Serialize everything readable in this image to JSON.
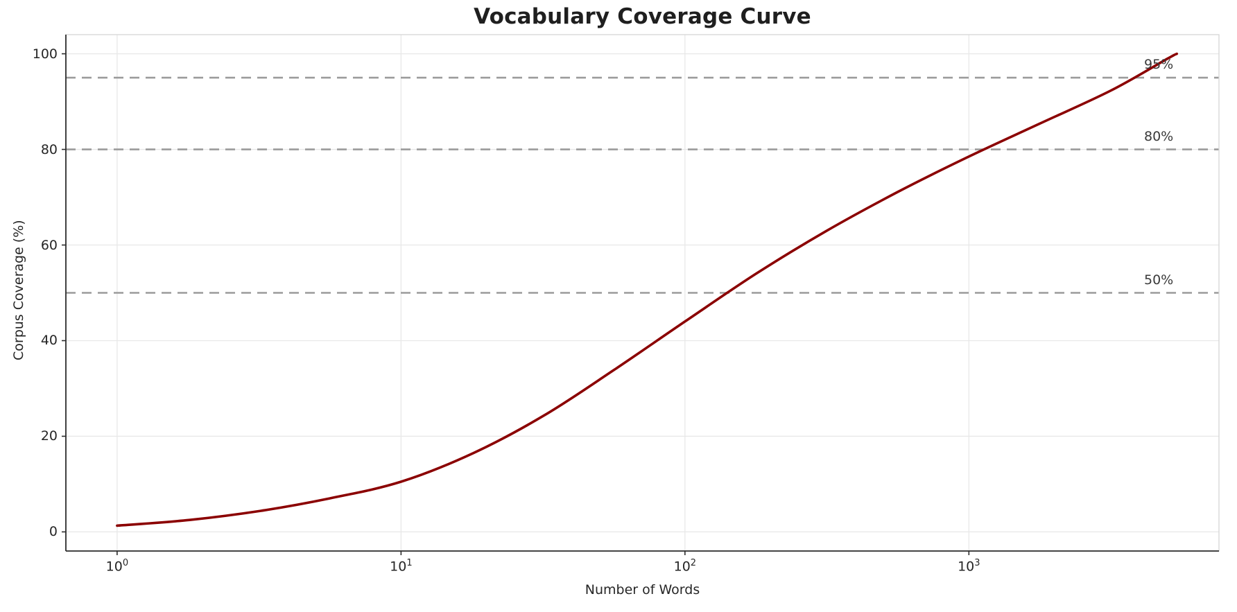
{
  "title": "Vocabulary Coverage Curve",
  "chart_data": {
    "type": "line",
    "title": "Vocabulary Coverage Curve",
    "xlabel": "Number of Words",
    "ylabel": "Corpus Coverage (%)",
    "x_scale": "log",
    "xlim": [
      0.66,
      7600
    ],
    "ylim": [
      -4,
      104
    ],
    "yticks": [
      0,
      20,
      40,
      60,
      80,
      100
    ],
    "xticks": [
      {
        "value": 1,
        "base": "10",
        "exp": "0"
      },
      {
        "value": 10,
        "base": "10",
        "exp": "1"
      },
      {
        "value": 100,
        "base": "10",
        "exp": "2"
      },
      {
        "value": 1000,
        "base": "10",
        "exp": "3"
      }
    ],
    "grid": true,
    "legend": false,
    "series": [
      {
        "name": "vocabulary-coverage",
        "color": "#8b0000",
        "line_width": 3.6,
        "x": [
          1,
          1.8,
          3.2,
          5.6,
          10,
          18,
          32,
          56,
          100,
          178,
          316,
          562,
          1000,
          1778,
          3162,
          5012,
          5400
        ],
        "y": [
          1.3,
          2.5,
          4.4,
          7.0,
          10.5,
          16.5,
          24.4,
          33.8,
          44.0,
          54.0,
          63.0,
          71.1,
          78.5,
          85.4,
          92.3,
          99.0,
          100
        ]
      }
    ],
    "reference_lines": [
      {
        "y": 50,
        "label": "50%",
        "color": "#9b9b9b",
        "style": "dashed"
      },
      {
        "y": 80,
        "label": "80%",
        "color": "#9b9b9b",
        "style": "dashed"
      },
      {
        "y": 95,
        "label": "95%",
        "color": "#9b9b9b",
        "style": "dashed"
      }
    ],
    "colors": {
      "curve": "#8b0000",
      "grid": "#e8e8e8",
      "reference": "#9b9b9b",
      "spine_dark": "#2b2b2b",
      "spine_light": "#d5d5d5",
      "text": "#262626"
    }
  }
}
